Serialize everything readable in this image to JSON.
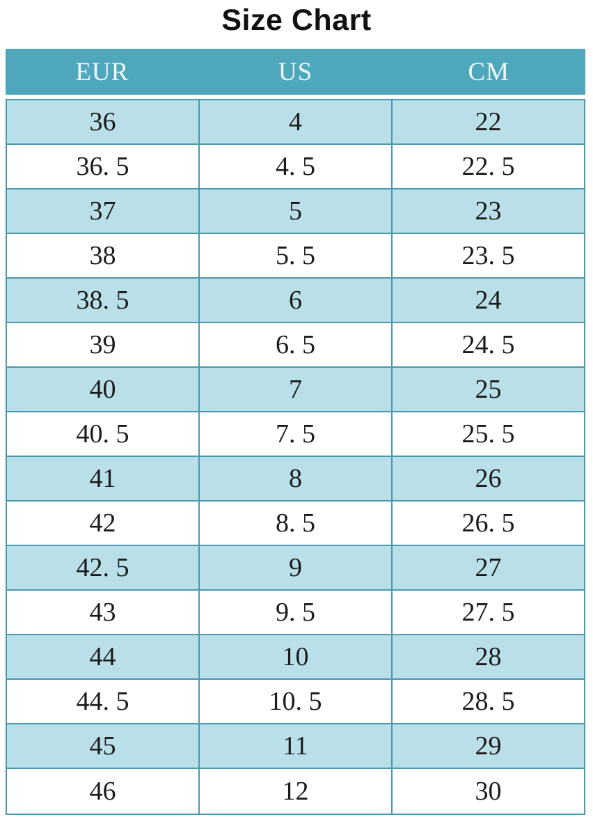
{
  "page": {
    "title": "Size Chart"
  },
  "colors": {
    "page_bg": "#ffffff",
    "title_text": "#111111",
    "header_bg": "#4fa7bc",
    "header_text": "#eef8fa",
    "row_alt_bg": "#b9dfe9",
    "row_bg": "#ffffff",
    "border": "#4a98ae",
    "cell_text": "#1b1b1b"
  },
  "chart_data": {
    "type": "table",
    "title": "Size Chart",
    "columns": [
      "EUR",
      "US",
      "CM"
    ],
    "rows": [
      [
        "36",
        "4",
        "22"
      ],
      [
        "36. 5",
        "4. 5",
        "22. 5"
      ],
      [
        "37",
        "5",
        "23"
      ],
      [
        "38",
        "5. 5",
        "23. 5"
      ],
      [
        "38. 5",
        "6",
        "24"
      ],
      [
        "39",
        "6. 5",
        "24. 5"
      ],
      [
        "40",
        "7",
        "25"
      ],
      [
        "40. 5",
        "7. 5",
        "25. 5"
      ],
      [
        "41",
        "8",
        "26"
      ],
      [
        "42",
        "8. 5",
        "26. 5"
      ],
      [
        "42. 5",
        "9",
        "27"
      ],
      [
        "43",
        "9. 5",
        "27. 5"
      ],
      [
        "44",
        "10",
        "28"
      ],
      [
        "44. 5",
        "10. 5",
        "28. 5"
      ],
      [
        "45",
        "11",
        "29"
      ],
      [
        "46",
        "12",
        "30"
      ]
    ],
    "layout": {
      "row_striping": "first-row-highlighted, alternating light-blue and white",
      "text_align": "center",
      "grid": "on"
    }
  }
}
